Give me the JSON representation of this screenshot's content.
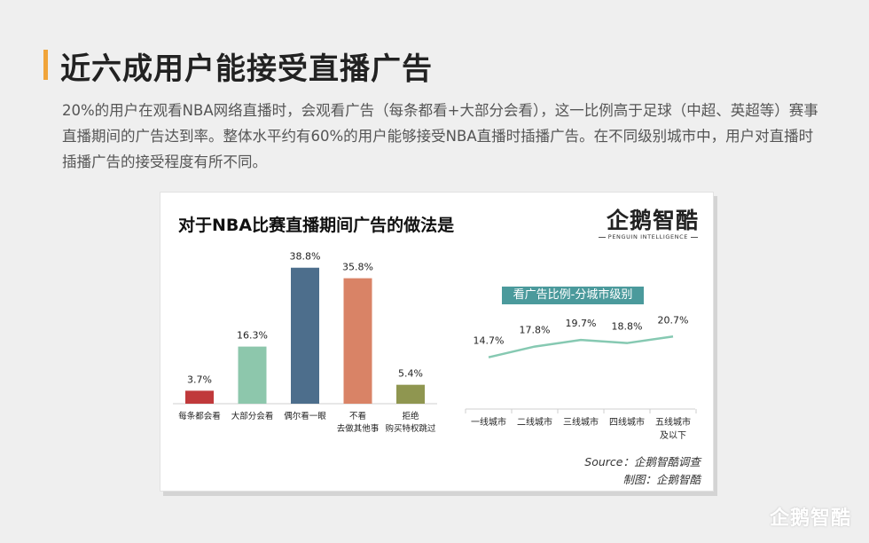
{
  "page": {
    "title": "近六成用户能接受直播广告",
    "intro": "20%的用户在观看NBA网络直播时，会观看广告（每条都看+大部分会看），这一比例高于足球（中超、英超等）赛事直播期间的广告达到率。整体水平约有60%的用户能够接受NBA直播时插播广告。在不同级别城市中，用户对直播时插播广告的接受程度有所不同。",
    "footer_logo": "企鹅智酷"
  },
  "card": {
    "title": "对于NBA比赛直播期间广告的做法是",
    "logo_cn": "企鹅智酷",
    "logo_en": "PENGUIN INTELLIGENCE",
    "source_line1": "Source：企鹅智酷调查",
    "source_line2": "制图：企鹅智酷"
  },
  "chart_data": [
    {
      "type": "bar",
      "title": "对于NBA比赛直播期间广告的做法是",
      "categories": [
        "每条都会看",
        "大部分会看",
        "偶尔看一眼",
        "不看\n去做其他事",
        "拒绝\n购买特权跳过"
      ],
      "values": [
        3.7,
        16.3,
        38.8,
        35.8,
        5.4
      ],
      "labels": [
        "3.7%",
        "16.3%",
        "38.8%",
        "35.8%",
        "5.4%"
      ],
      "colors": [
        "#c0393b",
        "#8dc7ac",
        "#4d6e8c",
        "#d98366",
        "#8f9650"
      ],
      "ylim": [
        0,
        40
      ],
      "grid": false,
      "legend": "none"
    },
    {
      "type": "line",
      "title": "看广告比例-分城市级别",
      "categories": [
        "一线城市",
        "二线城市",
        "三线城市",
        "四线城市",
        "五线城市\n及以下"
      ],
      "values": [
        14.7,
        17.8,
        19.7,
        18.8,
        20.7
      ],
      "labels": [
        "14.7%",
        "17.8%",
        "19.7%",
        "18.8%",
        "20.7%"
      ],
      "color": "#86c9b2",
      "ylim": [
        0,
        40
      ],
      "grid": false,
      "legend": "none"
    }
  ]
}
